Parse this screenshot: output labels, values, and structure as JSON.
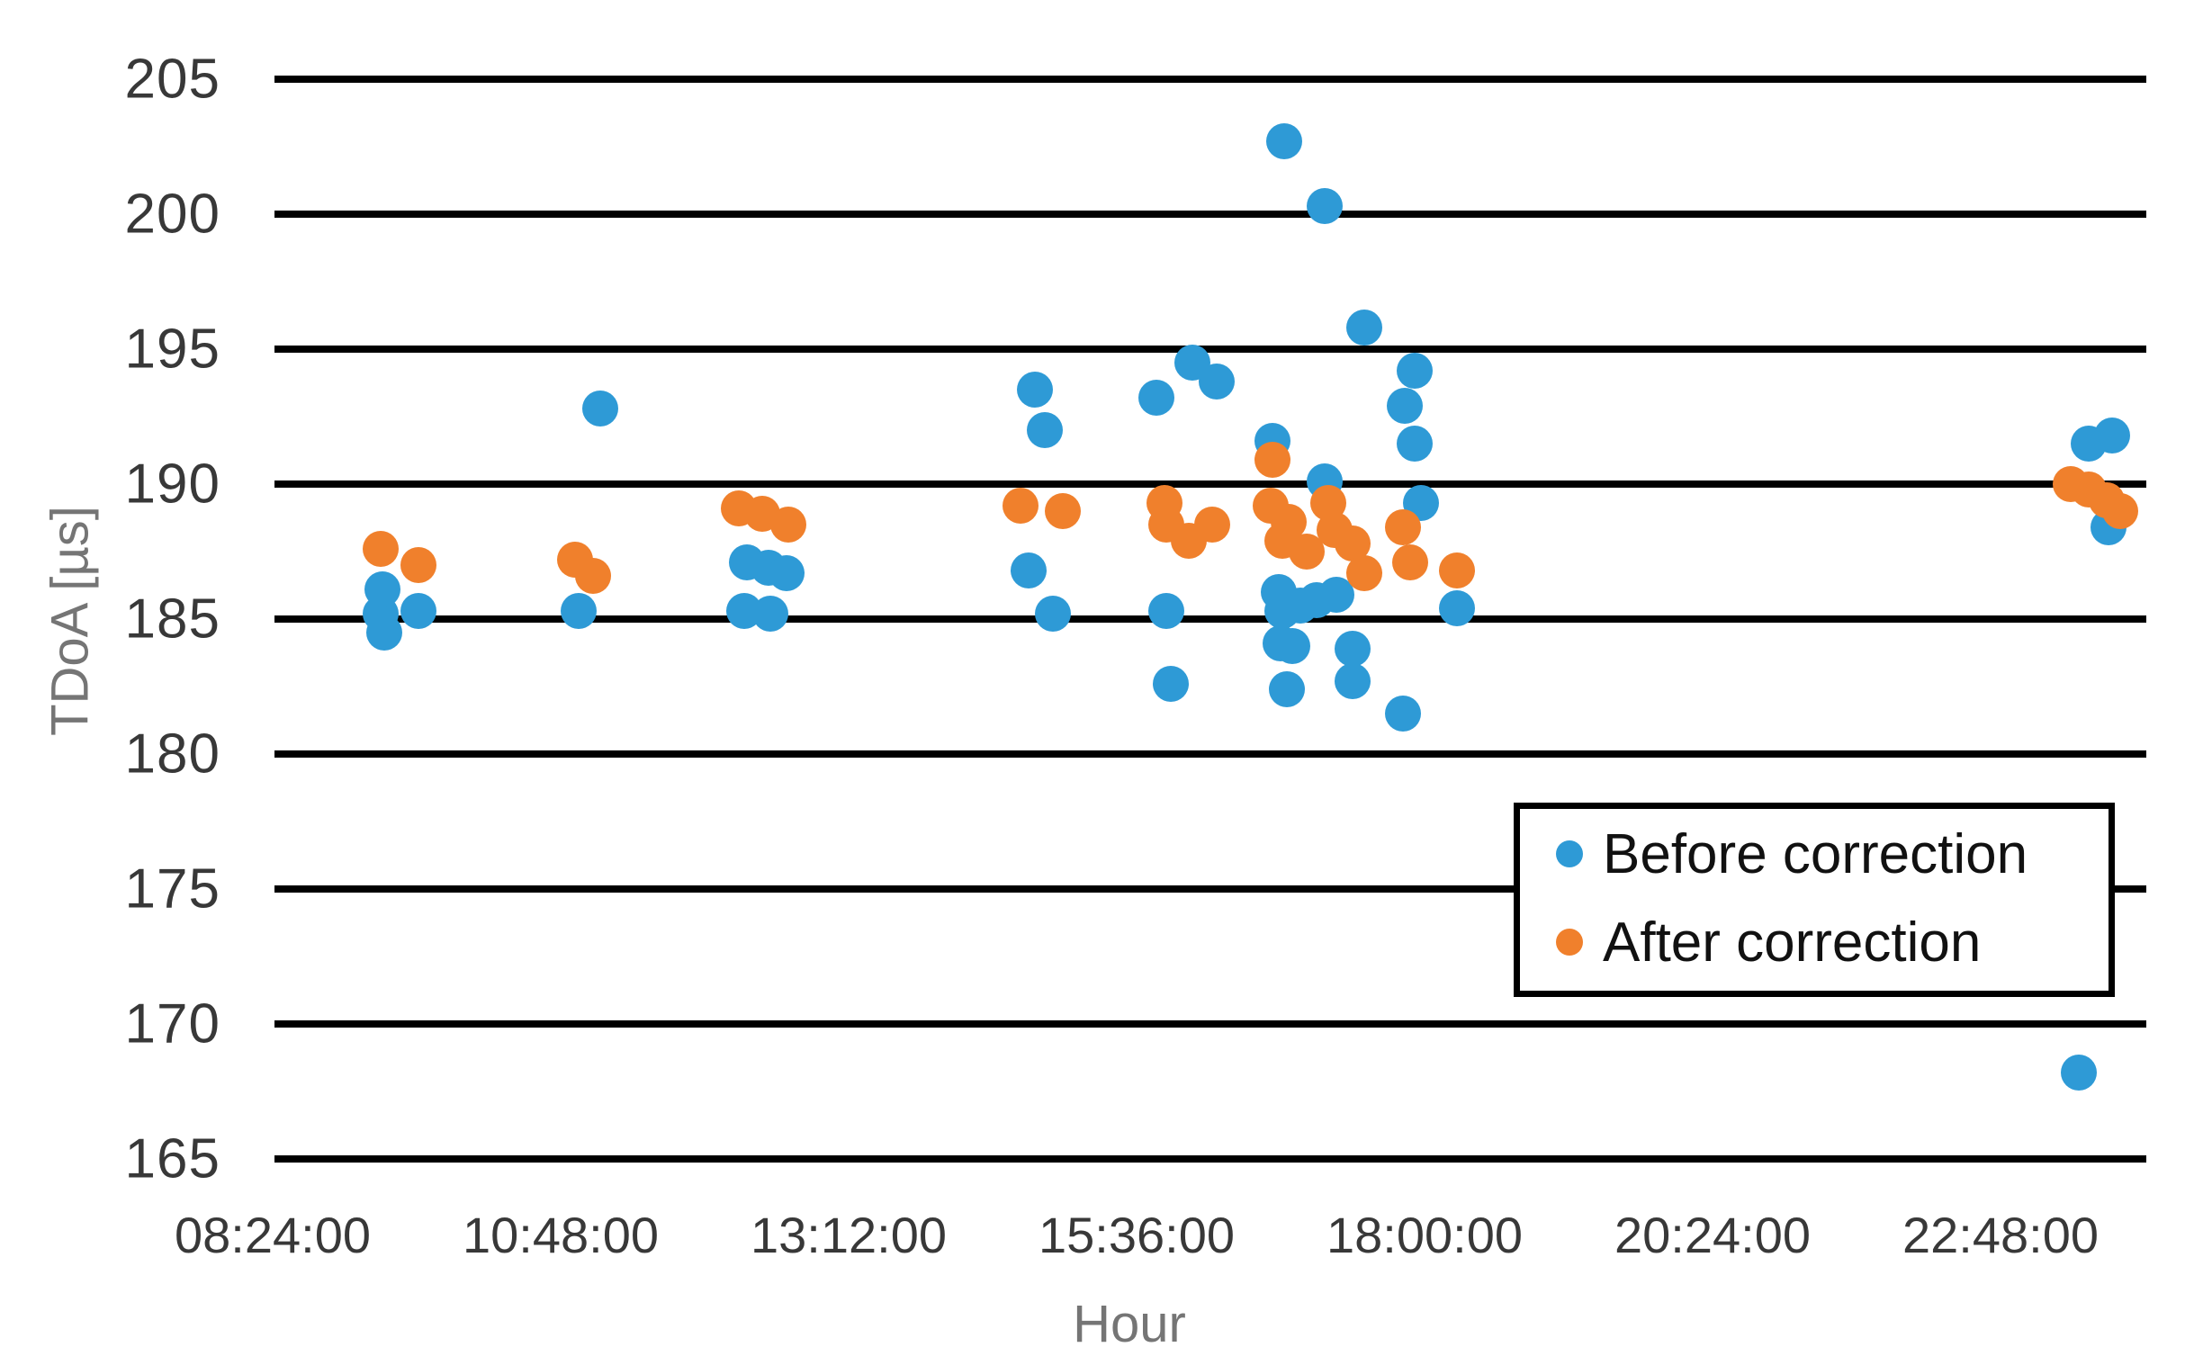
{
  "chart_data": {
    "type": "scatter",
    "title": "",
    "x_axis": {
      "title": "Hour",
      "ticks": [
        "08:24:00",
        "10:48:00",
        "13:12:00",
        "15:36:00",
        "18:00:00",
        "20:24:00",
        "22:48:00"
      ],
      "min": "08:24:00",
      "max": "24:00:00",
      "grid": false
    },
    "y_axis": {
      "title": "TDoA [µs]",
      "ticks": [
        205,
        200,
        195,
        190,
        185,
        180,
        175,
        170,
        165
      ],
      "min": 165,
      "max": 205,
      "tick_step": 5,
      "grid": true
    },
    "legend_position": "inside-right",
    "colors": {
      "before": "#2E9AD6",
      "after": "#F0802C",
      "gridline": "#000000"
    },
    "series": [
      {
        "name": "Before correction",
        "color_key": "before",
        "points": [
          {
            "t": "09:18",
            "v": 185.2
          },
          {
            "t": "09:19",
            "v": 186.1
          },
          {
            "t": "09:20",
            "v": 184.5
          },
          {
            "t": "09:37",
            "v": 185.3
          },
          {
            "t": "10:57",
            "v": 185.3
          },
          {
            "t": "11:08",
            "v": 192.8
          },
          {
            "t": "12:20",
            "v": 185.3
          },
          {
            "t": "12:21",
            "v": 187.1
          },
          {
            "t": "12:32",
            "v": 186.9
          },
          {
            "t": "12:33",
            "v": 185.2
          },
          {
            "t": "12:41",
            "v": 186.7
          },
          {
            "t": "14:42",
            "v": 186.8
          },
          {
            "t": "14:45",
            "v": 193.5
          },
          {
            "t": "14:50",
            "v": 192.0
          },
          {
            "t": "14:54",
            "v": 185.2
          },
          {
            "t": "15:46",
            "v": 193.2
          },
          {
            "t": "15:51",
            "v": 185.3
          },
          {
            "t": "15:53",
            "v": 182.6
          },
          {
            "t": "16:04",
            "v": 194.5
          },
          {
            "t": "16:16",
            "v": 193.8
          },
          {
            "t": "16:44",
            "v": 191.6
          },
          {
            "t": "16:47",
            "v": 186.0
          },
          {
            "t": "16:48",
            "v": 184.1
          },
          {
            "t": "16:49",
            "v": 185.3
          },
          {
            "t": "16:50",
            "v": 202.7
          },
          {
            "t": "16:51",
            "v": 182.4
          },
          {
            "t": "16:54",
            "v": 184.0
          },
          {
            "t": "16:58",
            "v": 185.5
          },
          {
            "t": "17:06",
            "v": 185.7
          },
          {
            "t": "17:10",
            "v": 200.3
          },
          {
            "t": "17:10",
            "v": 190.1
          },
          {
            "t": "17:16",
            "v": 185.9
          },
          {
            "t": "17:24",
            "v": 183.9
          },
          {
            "t": "17:24",
            "v": 182.7
          },
          {
            "t": "17:30",
            "v": 195.8
          },
          {
            "t": "17:49",
            "v": 181.5
          },
          {
            "t": "17:50",
            "v": 192.9
          },
          {
            "t": "17:55",
            "v": 194.2
          },
          {
            "t": "17:55",
            "v": 191.5
          },
          {
            "t": "17:58",
            "v": 189.3
          },
          {
            "t": "18:16",
            "v": 185.4
          },
          {
            "t": "23:27",
            "v": 168.2
          },
          {
            "t": "23:32",
            "v": 191.5
          },
          {
            "t": "23:42",
            "v": 188.4
          },
          {
            "t": "23:44",
            "v": 191.8
          }
        ]
      },
      {
        "name": "After correction",
        "color_key": "after",
        "points": [
          {
            "t": "09:18",
            "v": 187.6
          },
          {
            "t": "09:37",
            "v": 187.0
          },
          {
            "t": "10:55",
            "v": 187.2
          },
          {
            "t": "11:04",
            "v": 186.6
          },
          {
            "t": "12:17",
            "v": 189.1
          },
          {
            "t": "12:29",
            "v": 188.9
          },
          {
            "t": "12:42",
            "v": 188.5
          },
          {
            "t": "14:38",
            "v": 189.2
          },
          {
            "t": "14:59",
            "v": 189.0
          },
          {
            "t": "15:50",
            "v": 189.3
          },
          {
            "t": "15:51",
            "v": 188.5
          },
          {
            "t": "16:02",
            "v": 187.9
          },
          {
            "t": "16:14",
            "v": 188.5
          },
          {
            "t": "16:43",
            "v": 189.2
          },
          {
            "t": "16:44",
            "v": 190.9
          },
          {
            "t": "16:49",
            "v": 187.9
          },
          {
            "t": "16:52",
            "v": 188.6
          },
          {
            "t": "17:01",
            "v": 187.5
          },
          {
            "t": "17:12",
            "v": 189.3
          },
          {
            "t": "17:15",
            "v": 188.3
          },
          {
            "t": "17:24",
            "v": 187.8
          },
          {
            "t": "17:30",
            "v": 186.7
          },
          {
            "t": "17:49",
            "v": 188.4
          },
          {
            "t": "17:53",
            "v": 187.1
          },
          {
            "t": "18:16",
            "v": 186.8
          },
          {
            "t": "23:23",
            "v": 190.0
          },
          {
            "t": "23:32",
            "v": 189.8
          },
          {
            "t": "23:41",
            "v": 189.4
          },
          {
            "t": "23:48",
            "v": 189.0
          }
        ]
      }
    ]
  }
}
